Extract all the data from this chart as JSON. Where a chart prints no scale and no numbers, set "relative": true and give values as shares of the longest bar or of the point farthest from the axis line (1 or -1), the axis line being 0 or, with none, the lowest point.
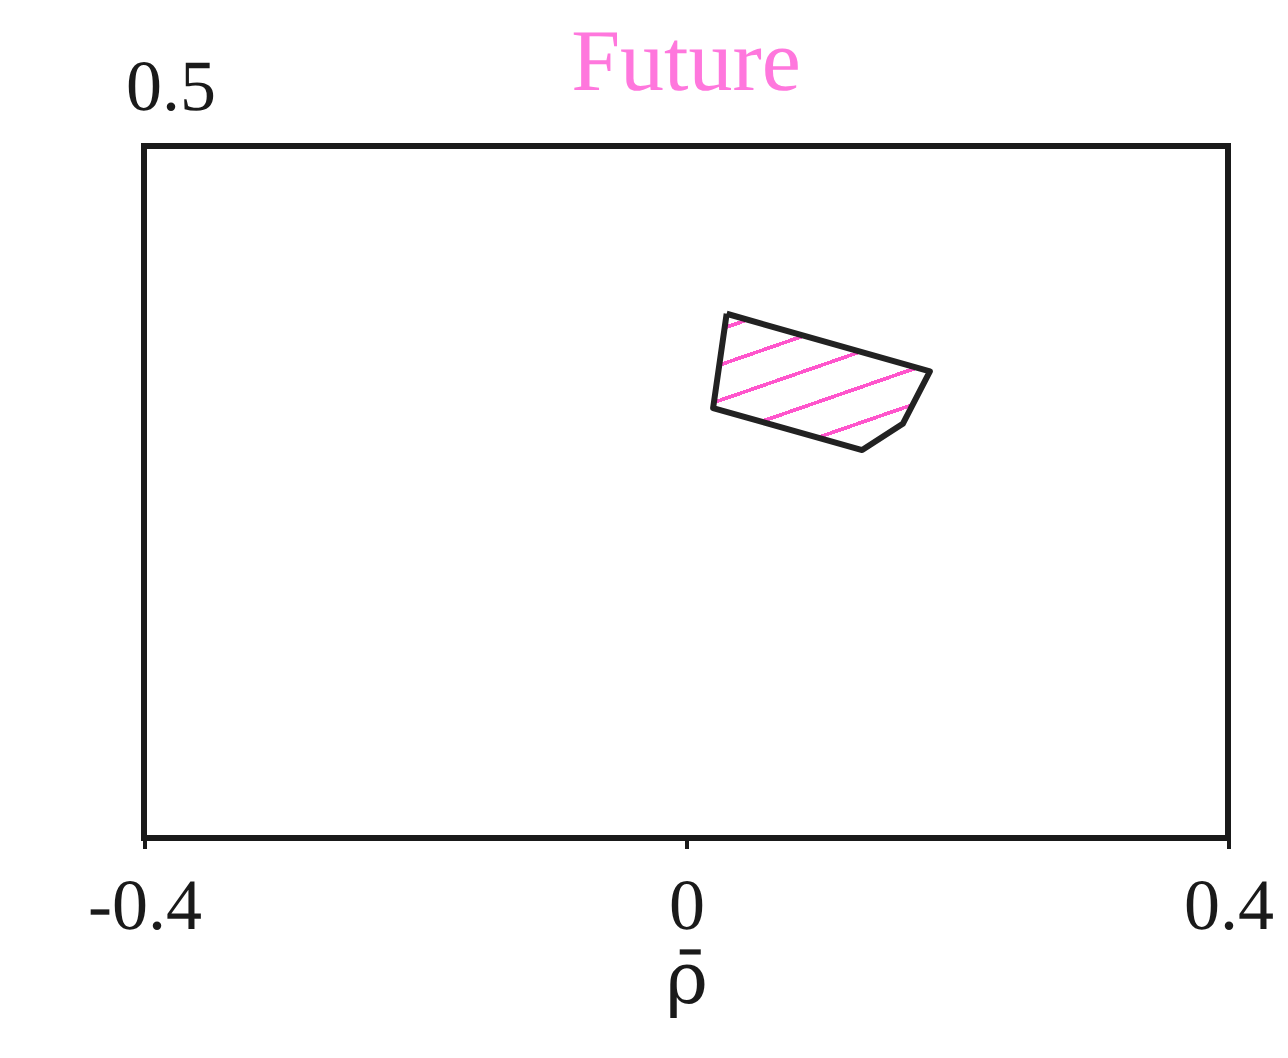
{
  "chart_data": {
    "type": "area",
    "title": "Future",
    "xlabel": "ρ̄",
    "relative": true,
    "annotations": [
      "0.5"
    ],
    "series": [
      {
        "color": "#222222",
        "x": [
          0.03,
          0.18,
          0.16,
          0.13,
          0.02
        ],
        "values": [
          1,
          0.89,
          0.79,
          0.74,
          0.82
        ]
      }
    ],
    "xlim": [
      -0.4,
      0.4
    ],
    "xticks": [
      -0.4,
      0,
      0.4
    ]
  }
}
